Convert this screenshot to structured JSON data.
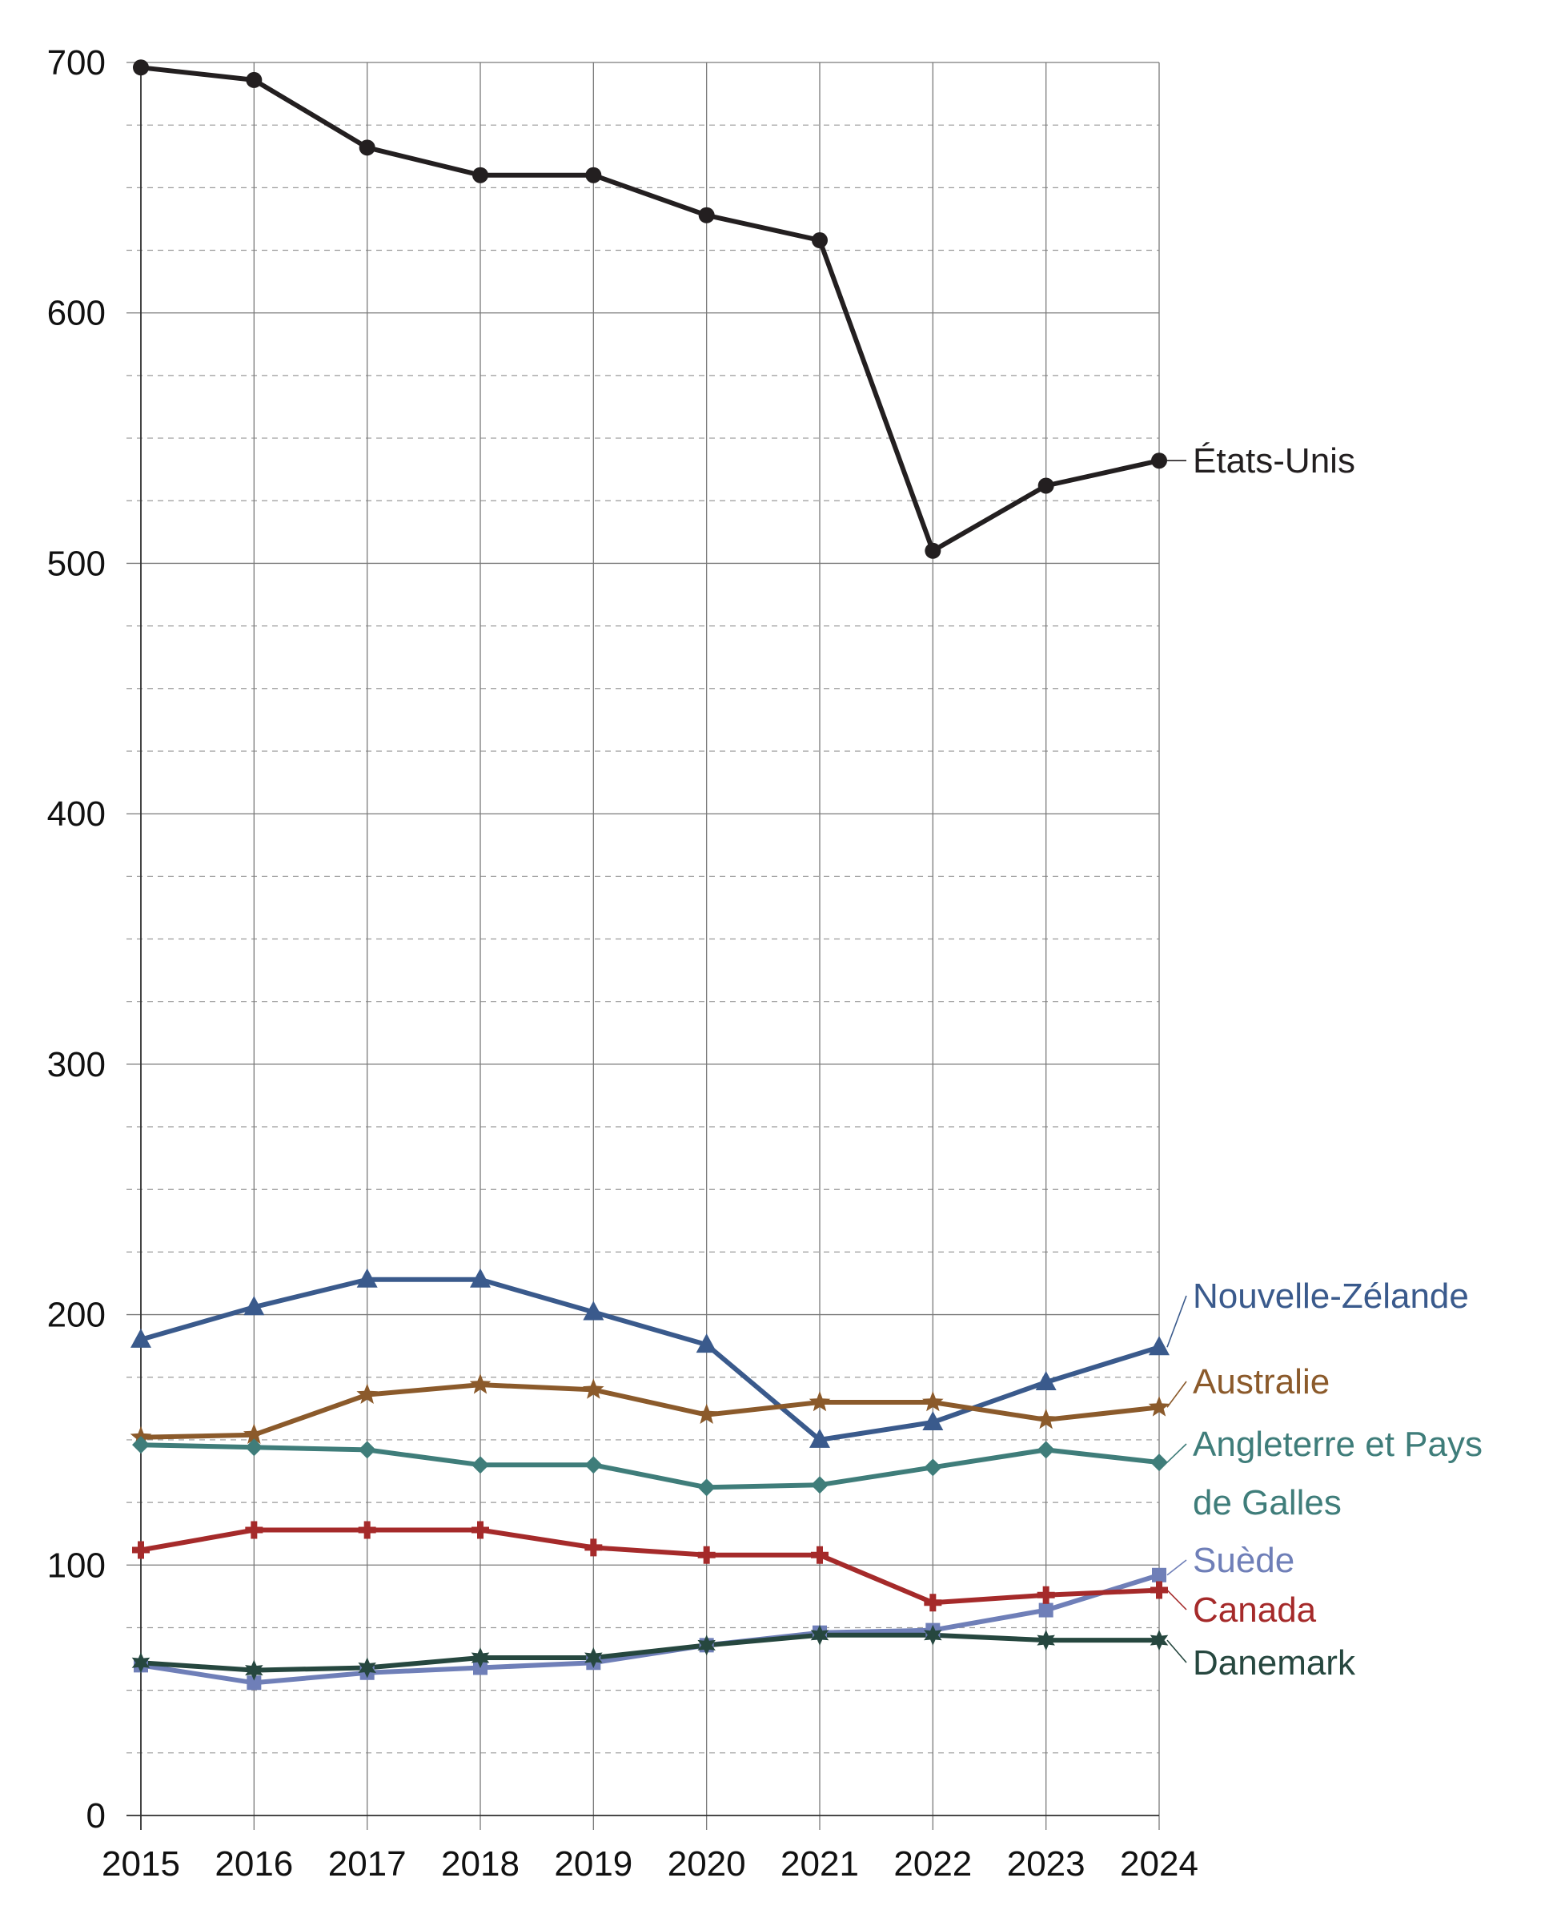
{
  "chart_data": {
    "type": "line",
    "title": "",
    "xlabel": "",
    "ylabel": "",
    "ylim": [
      0,
      700
    ],
    "y_major_step": 100,
    "y_minor_step": 25,
    "grid": true,
    "legend": "direct labels at right end of lines",
    "x": [
      2015,
      2016,
      2017,
      2018,
      2019,
      2020,
      2021,
      2022,
      2023,
      2024
    ],
    "x_tick_labels": [
      "2015",
      "2016",
      "2017",
      "2018",
      "2019",
      "2020",
      "2021",
      "2022",
      "2023",
      "2024"
    ],
    "y_tick_labels": [
      "0",
      "100",
      "200",
      "300",
      "400",
      "500",
      "600",
      "700"
    ],
    "series": [
      {
        "name": "États-Unis",
        "label_lines": [
          "États-Unis"
        ],
        "color": "#231f20",
        "marker": "circle",
        "values": [
          698,
          693,
          666,
          655,
          655,
          639,
          629,
          505,
          531,
          541
        ]
      },
      {
        "name": "Nouvelle-Zélande",
        "label_lines": [
          "Nouvelle-Zélande"
        ],
        "color": "#3a5a8c",
        "marker": "triangle",
        "values": [
          190,
          203,
          214,
          214,
          201,
          188,
          150,
          157,
          173,
          187
        ]
      },
      {
        "name": "Australie",
        "label_lines": [
          "Australie"
        ],
        "color": "#8b5a2b",
        "marker": "star",
        "values": [
          151,
          152,
          168,
          172,
          170,
          160,
          165,
          165,
          158,
          163
        ]
      },
      {
        "name": "Angleterre et Pays de Galles",
        "label_lines": [
          "Angleterre et Pays",
          "de Galles"
        ],
        "color": "#3f7d7a",
        "marker": "diamond",
        "values": [
          148,
          147,
          146,
          140,
          140,
          131,
          132,
          139,
          146,
          141
        ]
      },
      {
        "name": "Suède",
        "label_lines": [
          "Suède"
        ],
        "color": "#6f7fb8",
        "marker": "square",
        "values": [
          60,
          53,
          57,
          59,
          61,
          68,
          73,
          74,
          82,
          96
        ]
      },
      {
        "name": "Canada",
        "label_lines": [
          "Canada"
        ],
        "color": "#a52a2a",
        "marker": "cross",
        "values": [
          106,
          114,
          114,
          114,
          107,
          104,
          104,
          85,
          88,
          90
        ]
      },
      {
        "name": "Danemark",
        "label_lines": [
          "Danemark"
        ],
        "color": "#26473f",
        "marker": "star6",
        "values": [
          61,
          58,
          59,
          63,
          63,
          68,
          72,
          72,
          70,
          70
        ]
      }
    ]
  }
}
